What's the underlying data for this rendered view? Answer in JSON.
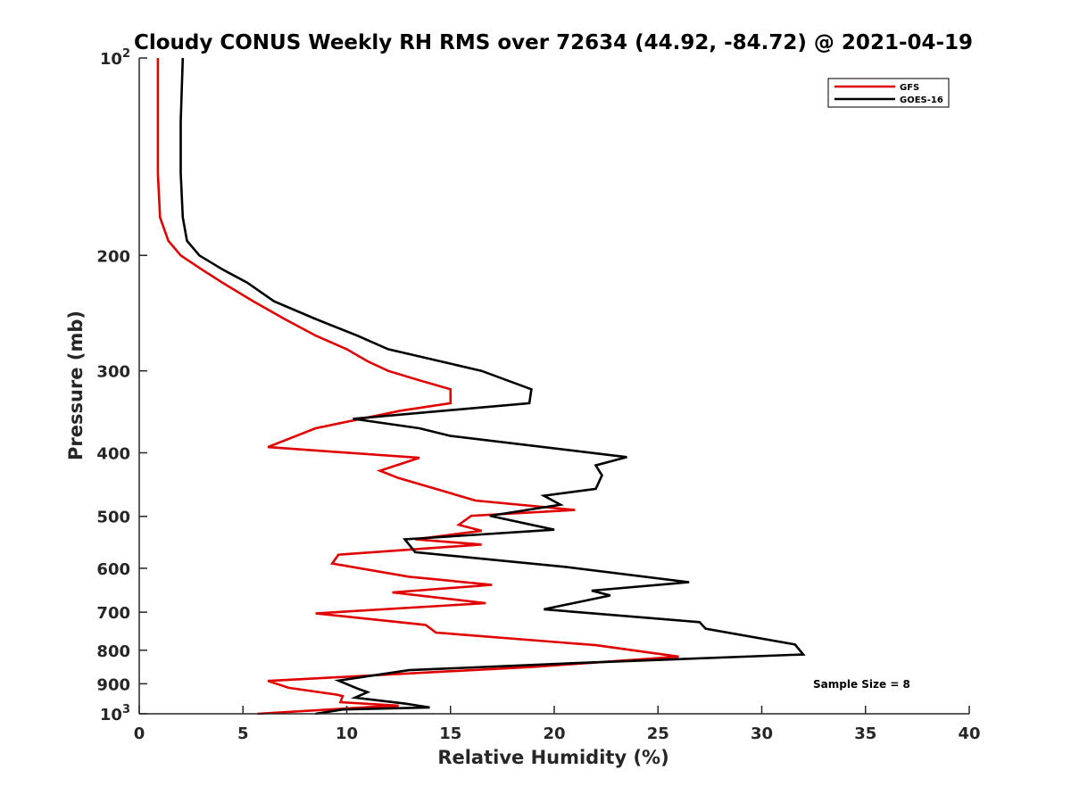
{
  "chart_data": {
    "type": "line",
    "title": "Cloudy CONUS Weekly RH RMS over 72634 (44.92, -84.72) @ 2021-04-19",
    "xlabel": "Relative Humidity (%)",
    "ylabel": "Pressure (mb)",
    "xlim": [
      0,
      40
    ],
    "ylim": [
      100,
      1000
    ],
    "y_scale": "log",
    "y_reversed": true,
    "grid": false,
    "legend_position": "top-right",
    "x_ticks": [
      "0",
      "5",
      "10",
      "15",
      "20",
      "25",
      "30",
      "35",
      "40"
    ],
    "y_ticks": [
      {
        "value": 100,
        "base": "10",
        "exp": "2"
      },
      {
        "value": 200,
        "label": "200"
      },
      {
        "value": 300,
        "label": "300"
      },
      {
        "value": 400,
        "label": "400"
      },
      {
        "value": 500,
        "label": "500"
      },
      {
        "value": 600,
        "label": "600"
      },
      {
        "value": 700,
        "label": "700"
      },
      {
        "value": 800,
        "label": "800"
      },
      {
        "value": 900,
        "label": "900"
      },
      {
        "value": 1000,
        "base": "10",
        "exp": "3"
      }
    ],
    "annotation": "Sample Size = 8",
    "series": [
      {
        "name": "GFS",
        "color": "#e00000",
        "points": [
          [
            0.9,
            100
          ],
          [
            0.9,
            125
          ],
          [
            0.9,
            150
          ],
          [
            1.0,
            175
          ],
          [
            1.4,
            190
          ],
          [
            2.0,
            200
          ],
          [
            3.0,
            210
          ],
          [
            4.0,
            220
          ],
          [
            5.5,
            235
          ],
          [
            7.0,
            250
          ],
          [
            8.5,
            265
          ],
          [
            10.0,
            278
          ],
          [
            11.0,
            290
          ],
          [
            12.0,
            300
          ],
          [
            13.5,
            310
          ],
          [
            15.0,
            320
          ],
          [
            15.0,
            336
          ],
          [
            12.6,
            345
          ],
          [
            8.5,
            367
          ],
          [
            6.2,
            392
          ],
          [
            13.5,
            407
          ],
          [
            11.6,
            426
          ],
          [
            12.5,
            437
          ],
          [
            14.8,
            459
          ],
          [
            16.2,
            473
          ],
          [
            21.0,
            489
          ],
          [
            16.0,
            499
          ],
          [
            15.4,
            515
          ],
          [
            16.5,
            526
          ],
          [
            13.3,
            542
          ],
          [
            16.5,
            552
          ],
          [
            9.6,
            572
          ],
          [
            9.3,
            590
          ],
          [
            13.0,
            618
          ],
          [
            17.0,
            636
          ],
          [
            12.2,
            653
          ],
          [
            16.7,
            678
          ],
          [
            8.5,
            703
          ],
          [
            13.8,
            732
          ],
          [
            14.3,
            752
          ],
          [
            22.0,
            786
          ],
          [
            26.0,
            818
          ],
          [
            19.0,
            848
          ],
          [
            6.2,
            891
          ],
          [
            7.2,
            913
          ],
          [
            9.5,
            935
          ],
          [
            9.8,
            940
          ],
          [
            9.7,
            960
          ],
          [
            12.5,
            972
          ],
          [
            11.0,
            977
          ],
          [
            5.7,
            1000
          ]
        ]
      },
      {
        "name": "GOES-16",
        "color": "#000000",
        "points": [
          [
            2.1,
            100
          ],
          [
            2.0,
            125
          ],
          [
            2.0,
            150
          ],
          [
            2.1,
            175
          ],
          [
            2.3,
            190
          ],
          [
            2.9,
            200
          ],
          [
            4.0,
            210
          ],
          [
            5.2,
            220
          ],
          [
            6.5,
            235
          ],
          [
            8.5,
            250
          ],
          [
            10.5,
            265
          ],
          [
            12.0,
            278
          ],
          [
            14.5,
            290
          ],
          [
            16.5,
            300
          ],
          [
            18.9,
            320
          ],
          [
            18.8,
            336
          ],
          [
            10.3,
            355
          ],
          [
            13.5,
            367
          ],
          [
            15.0,
            377
          ],
          [
            23.5,
            406
          ],
          [
            22.0,
            418
          ],
          [
            22.3,
            433
          ],
          [
            22.0,
            454
          ],
          [
            19.5,
            465
          ],
          [
            20.3,
            480
          ],
          [
            16.9,
            499
          ],
          [
            20.0,
            524
          ],
          [
            12.8,
            542
          ],
          [
            13.3,
            567
          ],
          [
            20.5,
            597
          ],
          [
            26.5,
            630
          ],
          [
            21.8,
            649
          ],
          [
            22.7,
            660
          ],
          [
            19.5,
            693
          ],
          [
            27.0,
            725
          ],
          [
            27.3,
            742
          ],
          [
            31.6,
            784
          ],
          [
            32.0,
            812
          ],
          [
            21.0,
            837
          ],
          [
            13.0,
            858
          ],
          [
            9.6,
            890
          ],
          [
            10.5,
            915
          ],
          [
            11.0,
            927
          ],
          [
            10.4,
            945
          ],
          [
            12.8,
            965
          ],
          [
            14.0,
            978
          ],
          [
            9.8,
            985
          ],
          [
            8.5,
            1000
          ]
        ]
      }
    ]
  }
}
